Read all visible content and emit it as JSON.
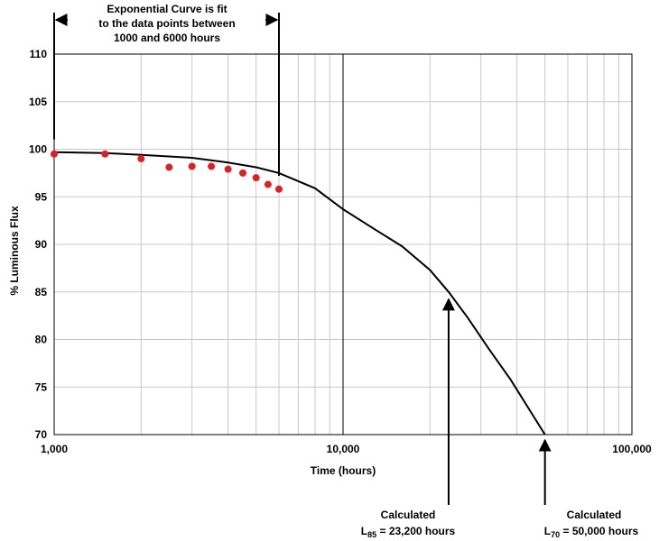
{
  "chart_data": {
    "type": "scatter",
    "xlabel": "Time (hours)",
    "ylabel": "% Luminous Flux",
    "xscale": "log",
    "xlim": [
      1000,
      100000
    ],
    "ylim": [
      70,
      110
    ],
    "y_ticks": [
      70,
      75,
      80,
      85,
      90,
      95,
      100,
      105,
      110
    ],
    "x_tick_labels": [
      {
        "value": 1000,
        "label": "1,000"
      },
      {
        "value": 10000,
        "label": "10,000"
      },
      {
        "value": 100000,
        "label": "100,000"
      }
    ],
    "grid": true,
    "series": [
      {
        "kind": "points",
        "color": "#e02020",
        "x": [
          1000,
          1500,
          2000,
          2500,
          3000,
          3500,
          4000,
          4500,
          5000,
          5500,
          6000
        ],
        "y": [
          99.5,
          99.5,
          99.0,
          98.1,
          98.2,
          98.2,
          97.9,
          97.5,
          97.0,
          96.3,
          95.8
        ]
      },
      {
        "kind": "fit-curve",
        "color": "#000000",
        "model": "exponential",
        "x": [
          1000,
          1500,
          2000,
          3000,
          4000,
          5000,
          6000,
          8000,
          10000,
          13000,
          16000,
          20000,
          23200,
          27000,
          32000,
          38000,
          44000,
          50000
        ],
        "y": [
          99.7,
          99.6,
          99.4,
          99.1,
          98.6,
          98.1,
          97.5,
          95.9,
          93.7,
          91.5,
          89.8,
          87.3,
          85.0,
          82.3,
          79.0,
          75.8,
          72.7,
          70.0
        ]
      }
    ],
    "annotations": {
      "fit_range": {
        "line1": "Exponential Curve is fit",
        "line2": "to the data points between",
        "line3": "1000 and 6000 hours",
        "x_start": 1000,
        "x_end": 6000
      },
      "l85": {
        "line1": "Calculated",
        "prefix": "L",
        "subscript": "85",
        "suffix": " = 23,200 hours",
        "x": 23200,
        "y": 85
      },
      "l70": {
        "line1": "Calculated",
        "prefix": "L",
        "subscript": "70",
        "suffix": " = 50,000 hours",
        "x": 50000,
        "y": 70
      }
    }
  }
}
